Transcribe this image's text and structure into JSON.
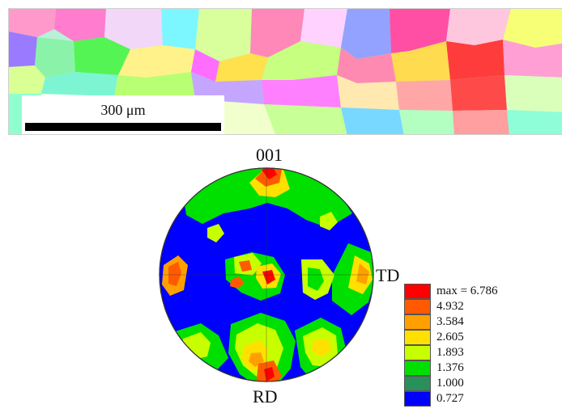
{
  "microstructure": {
    "scale_label": "300 μm"
  },
  "pole_figure": {
    "top_label": "001",
    "right_label": "TD",
    "bottom_label": "RD"
  },
  "legend": {
    "items": [
      {
        "label": "max = 6.786",
        "color": "#ff0000"
      },
      {
        "label": "4.932",
        "color": "#ff5a00"
      },
      {
        "label": "3.584",
        "color": "#ffa000"
      },
      {
        "label": "2.605",
        "color": "#ffe000"
      },
      {
        "label": "1.893",
        "color": "#c8ff00"
      },
      {
        "label": "1.376",
        "color": "#00e000"
      },
      {
        "label": "1.000",
        "color": "#2a8f5a"
      },
      {
        "label": "0.727",
        "color": "#0000ff"
      }
    ]
  }
}
